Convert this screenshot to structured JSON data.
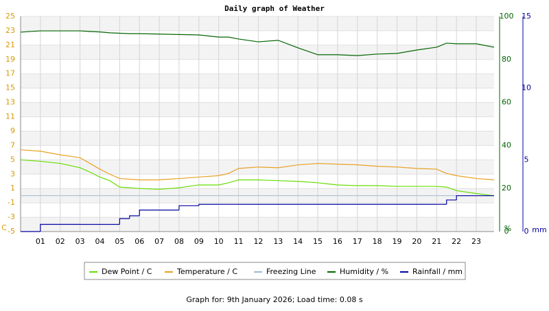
{
  "chart_data": {
    "type": "line",
    "title": "Daily graph of Weather",
    "x": [
      0,
      1,
      2,
      3,
      3.5,
      4,
      4.5,
      5,
      5.5,
      6,
      7,
      8,
      9,
      10,
      10.5,
      11,
      12,
      13,
      14,
      15,
      16,
      17,
      18,
      19,
      20,
      21,
      21.5,
      22,
      23,
      23.9
    ],
    "xlim": [
      0,
      23.9
    ],
    "xticks": [
      {
        "value": 1,
        "label": "01"
      },
      {
        "value": 2,
        "label": "02"
      },
      {
        "value": 3,
        "label": "03"
      },
      {
        "value": 4,
        "label": "04"
      },
      {
        "value": 5,
        "label": "05"
      },
      {
        "value": 6,
        "label": "06"
      },
      {
        "value": 7,
        "label": "07"
      },
      {
        "value": 8,
        "label": "08"
      },
      {
        "value": 9,
        "label": "09"
      },
      {
        "value": 10,
        "label": "10"
      },
      {
        "value": 11,
        "label": "11"
      },
      {
        "value": 12,
        "label": "12"
      },
      {
        "value": 13,
        "label": "13"
      },
      {
        "value": 14,
        "label": "14"
      },
      {
        "value": 15,
        "label": "15"
      },
      {
        "value": 16,
        "label": "16"
      },
      {
        "value": 17,
        "label": "17"
      },
      {
        "value": 18,
        "label": "18"
      },
      {
        "value": 19,
        "label": "19"
      },
      {
        "value": 20,
        "label": "20"
      },
      {
        "value": 21,
        "label": "21"
      },
      {
        "value": 22,
        "label": "22"
      },
      {
        "value": 23,
        "label": "23"
      }
    ],
    "ylim": [
      -5,
      25
    ],
    "yticks": [
      -5,
      -3,
      -1,
      1,
      3,
      5,
      7,
      9,
      11,
      13,
      15,
      17,
      19,
      21,
      23,
      25
    ],
    "y_unit": "C",
    "y_color": "#d89a00",
    "y2lim": [
      0,
      100
    ],
    "y2ticks": [
      0,
      20,
      40,
      60,
      80,
      100
    ],
    "y2_unit": "%",
    "y2_color": "#006400",
    "y3lim": [
      0,
      15
    ],
    "y3ticks": [
      0,
      5,
      10,
      15
    ],
    "y3_unit": "mm",
    "y3_color": "#0000a0",
    "grid": true,
    "series": [
      {
        "name": "Dew Point / C",
        "color": "#66dd00",
        "values": [
          5.0,
          4.8,
          4.5,
          3.9,
          3.3,
          2.6,
          2.1,
          1.2,
          1.1,
          1.0,
          0.9,
          1.1,
          1.5,
          1.5,
          1.8,
          2.2,
          2.2,
          2.1,
          2.0,
          1.8,
          1.5,
          1.4,
          1.4,
          1.3,
          1.3,
          1.3,
          1.2,
          0.7,
          0.3,
          0.0
        ]
      },
      {
        "name": "Temperature / C",
        "color": "#e8a020",
        "values": [
          6.4,
          6.2,
          5.7,
          5.3,
          4.5,
          3.7,
          3.0,
          2.4,
          2.3,
          2.2,
          2.2,
          2.4,
          2.6,
          2.8,
          3.1,
          3.8,
          4.0,
          3.9,
          4.3,
          4.5,
          4.4,
          4.3,
          4.1,
          4.0,
          3.8,
          3.7,
          3.1,
          2.8,
          2.4,
          2.2
        ]
      },
      {
        "name": "Freezing Line",
        "color": "#a0b8d0",
        "level": 0
      },
      {
        "name": "Humidity / %",
        "color": "#006400",
        "axis": "y2",
        "values": [
          92.7,
          93.3,
          93.3,
          93.3,
          93.0,
          92.8,
          92.4,
          92.2,
          92.0,
          92.0,
          91.8,
          91.6,
          91.4,
          90.4,
          90.4,
          89.5,
          88.2,
          88.9,
          85.4,
          82.2,
          82.2,
          81.8,
          82.5,
          82.8,
          84.4,
          85.7,
          87.6,
          87.3,
          87.3,
          85.7
        ]
      },
      {
        "name": "Rainfall / mm",
        "color": "#0000a0",
        "axis": "y3",
        "step": true,
        "values": [
          0,
          0.5,
          0.5,
          0.5,
          0.5,
          0.5,
          0.5,
          0.9,
          1.1,
          1.5,
          1.5,
          1.8,
          1.9,
          1.9,
          1.9,
          1.9,
          1.9,
          1.9,
          1.9,
          1.9,
          1.9,
          1.9,
          1.9,
          1.9,
          1.9,
          1.9,
          2.2,
          2.5,
          2.5,
          2.5
        ]
      }
    ],
    "footer": "Graph for: 9th January 2026; Load time: 0.08 s"
  }
}
